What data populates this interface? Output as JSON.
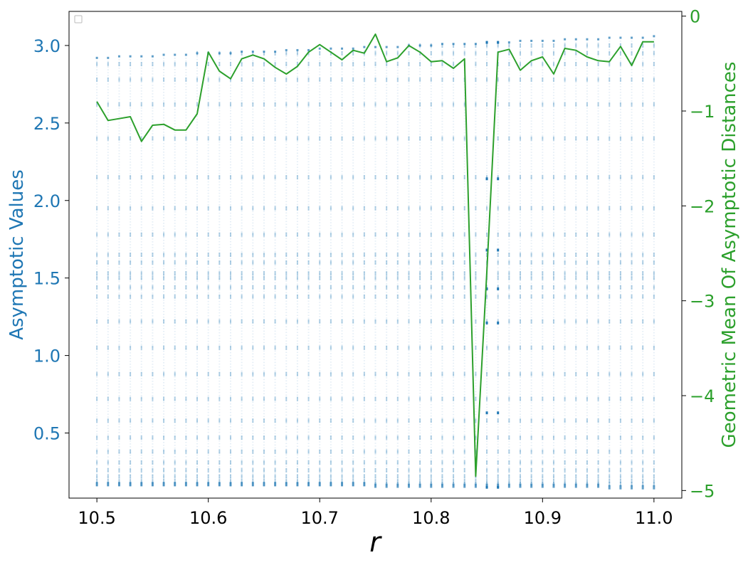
{
  "chart_data": {
    "type": "scatter",
    "xlabel": "r",
    "ylabel_left": "Asymptotic Values",
    "ylabel_right": "Geometric Mean Of Asymptotic Distances",
    "xlim": [
      10.475,
      11.025
    ],
    "ylim_left": [
      0.08,
      3.22
    ],
    "ylim_right": [
      -5.08,
      0.05
    ],
    "x_ticks": [
      10.5,
      10.6,
      10.7,
      10.8,
      10.9,
      11.0
    ],
    "x_tick_labels": [
      "10.5",
      "10.6",
      "10.7",
      "10.8",
      "10.9",
      "11.0"
    ],
    "y_left_ticks": [
      0.5,
      1.0,
      1.5,
      2.0,
      2.5,
      3.0
    ],
    "y_left_tick_labels": [
      "0.5",
      "1.0",
      "1.5",
      "2.0",
      "2.5",
      "3.0"
    ],
    "y_right_ticks": [
      0,
      -1,
      -2,
      -3,
      -4,
      -5
    ],
    "y_right_tick_labels": [
      "0",
      "−1",
      "−2",
      "−3",
      "−4",
      "−5"
    ],
    "grid": false,
    "legend": "top-left (empty)",
    "colors": {
      "scatter": "#1f77b4",
      "line": "#2ca02c",
      "left_axis_text": "#1f77b4",
      "right_axis_text": "#2ca02c"
    },
    "series": [
      {
        "name": "Asymptotic Values",
        "kind": "scatter",
        "axis": "left",
        "r_values": [
          10.5,
          10.51,
          10.52,
          10.53,
          10.54,
          10.55,
          10.56,
          10.57,
          10.58,
          10.59,
          10.6,
          10.61,
          10.62,
          10.63,
          10.64,
          10.65,
          10.66,
          10.67,
          10.68,
          10.69,
          10.7,
          10.71,
          10.72,
          10.73,
          10.74,
          10.75,
          10.76,
          10.77,
          10.78,
          10.79,
          10.8,
          10.81,
          10.82,
          10.83,
          10.84,
          10.85,
          10.86,
          10.87,
          10.88,
          10.89,
          10.9,
          10.91,
          10.92,
          10.93,
          10.94,
          10.95,
          10.96,
          10.97,
          10.98,
          10.99,
          11.0
        ],
        "min_values": [
          0.17,
          0.17,
          0.17,
          0.17,
          0.17,
          0.17,
          0.17,
          0.17,
          0.17,
          0.17,
          0.17,
          0.17,
          0.17,
          0.17,
          0.17,
          0.17,
          0.17,
          0.17,
          0.17,
          0.17,
          0.17,
          0.17,
          0.17,
          0.17,
          0.17,
          0.16,
          0.16,
          0.16,
          0.16,
          0.16,
          0.16,
          0.16,
          0.16,
          0.16,
          0.16,
          0.16,
          0.16,
          0.16,
          0.16,
          0.16,
          0.16,
          0.16,
          0.16,
          0.16,
          0.16,
          0.16,
          0.15,
          0.15,
          0.15,
          0.15,
          0.15
        ],
        "max_values": [
          2.92,
          2.92,
          2.93,
          2.93,
          2.93,
          2.93,
          2.94,
          2.94,
          2.94,
          2.95,
          2.95,
          2.95,
          2.95,
          2.96,
          2.96,
          2.96,
          2.96,
          2.97,
          2.97,
          2.97,
          2.98,
          2.98,
          2.98,
          2.98,
          2.99,
          2.99,
          2.99,
          2.99,
          3.0,
          3.0,
          3.0,
          3.01,
          3.01,
          3.01,
          3.01,
          3.02,
          3.02,
          3.02,
          3.03,
          3.03,
          3.03,
          3.03,
          3.04,
          3.04,
          3.04,
          3.04,
          3.05,
          3.05,
          3.05,
          3.05,
          3.06
        ],
        "periodic_window": {
          "r": [
            10.85,
            10.86
          ],
          "values": [
            0.15,
            0.63,
            1.21,
            1.43,
            1.68,
            2.14,
            3.02
          ]
        }
      },
      {
        "name": "Geometric Mean Of Asymptotic Distances",
        "kind": "line",
        "axis": "right",
        "x": [
          10.5,
          10.51,
          10.52,
          10.53,
          10.54,
          10.55,
          10.56,
          10.57,
          10.58,
          10.59,
          10.6,
          10.61,
          10.62,
          10.63,
          10.64,
          10.65,
          10.66,
          10.67,
          10.68,
          10.69,
          10.7,
          10.71,
          10.72,
          10.73,
          10.74,
          10.75,
          10.76,
          10.77,
          10.78,
          10.79,
          10.8,
          10.81,
          10.82,
          10.83,
          10.84,
          10.85,
          10.86,
          10.87,
          10.88,
          10.89,
          10.9,
          10.91,
          10.92,
          10.93,
          10.94,
          10.95,
          10.96,
          10.97,
          10.98,
          10.99,
          11.0
        ],
        "y": [
          -0.9,
          -1.1,
          -1.08,
          -1.06,
          -1.32,
          -1.15,
          -1.14,
          -1.2,
          -1.2,
          -1.03,
          -0.38,
          -0.58,
          -0.66,
          -0.45,
          -0.41,
          -0.45,
          -0.54,
          -0.61,
          -0.53,
          -0.38,
          -0.3,
          -0.38,
          -0.46,
          -0.36,
          -0.39,
          -0.19,
          -0.48,
          -0.44,
          -0.31,
          -0.38,
          -0.48,
          -0.47,
          -0.55,
          -0.45,
          -4.85,
          -2.7,
          -0.38,
          -0.35,
          -0.57,
          -0.47,
          -0.43,
          -0.61,
          -0.34,
          -0.36,
          -0.43,
          -0.47,
          -0.48,
          -0.32,
          -0.52,
          -0.27,
          -0.27
        ]
      }
    ]
  }
}
